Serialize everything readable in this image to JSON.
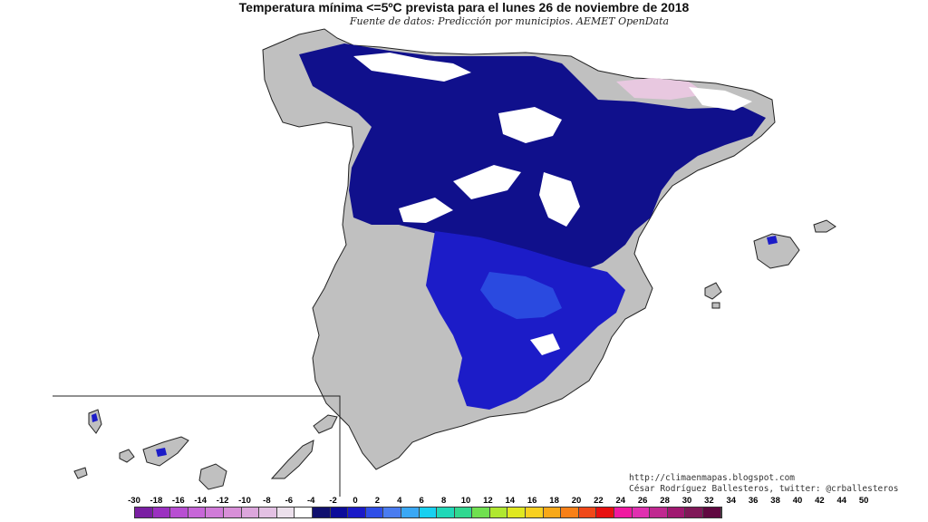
{
  "title": "Temperatura mínima <=5ºC prevista para el lunes 26 de noviembre de 2018",
  "subtitle": "Fuente de datos: Predicción por municipios. AEMET OpenData",
  "credits": {
    "url": "http://climaenmapas.blogspot.com",
    "author": "César Rodríguez Ballesteros, twitter: @crballesteros"
  },
  "legend": {
    "labels": [
      "-30",
      "-18",
      "-16",
      "-14",
      "-12",
      "-10",
      "-8",
      "-6",
      "-4",
      "-2",
      "0",
      "2",
      "4",
      "6",
      "8",
      "10",
      "12",
      "14",
      "16",
      "18",
      "20",
      "22",
      "24",
      "26",
      "28",
      "30",
      "32",
      "34",
      "36",
      "38",
      "40",
      "42",
      "44",
      "50"
    ],
    "colors": [
      "#7a1fa2",
      "#9b30c0",
      "#b84ed2",
      "#c766d8",
      "#d07bd8",
      "#d88fd8",
      "#dca6dc",
      "#e3c0e3",
      "#ece0ec",
      "#ffffff",
      "#10106e",
      "#0c0c9a",
      "#1a1ac8",
      "#2e4ee8",
      "#4a7cf0",
      "#3aa8f5",
      "#18d0f0",
      "#20d8b8",
      "#30d890",
      "#70e050",
      "#b0e830",
      "#e0e820",
      "#f8d020",
      "#f8a818",
      "#f88018",
      "#f04818",
      "#e81010",
      "#f018a0",
      "#e030b0",
      "#c02890",
      "#a01870",
      "#801858",
      "#600840"
    ]
  },
  "colors": {
    "land": "#c0c0c0",
    "border": "#222222",
    "cold_dark": "#10108c",
    "cold_mid": "#1c1cc8",
    "cold_light": "#2a4ae0",
    "snow": "#ffffff",
    "pink": "#e8c8e0"
  }
}
